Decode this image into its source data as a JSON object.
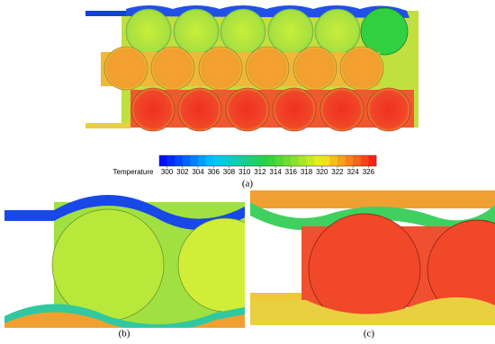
{
  "colorbar": {
    "label": "Temperature",
    "ticks": [
      300,
      302,
      304,
      306,
      308,
      310,
      312,
      314,
      316,
      318,
      320,
      322,
      324,
      326
    ],
    "range": [
      299,
      327
    ]
  },
  "panels": [
    "(a)",
    "(b)",
    "(c)"
  ]
}
